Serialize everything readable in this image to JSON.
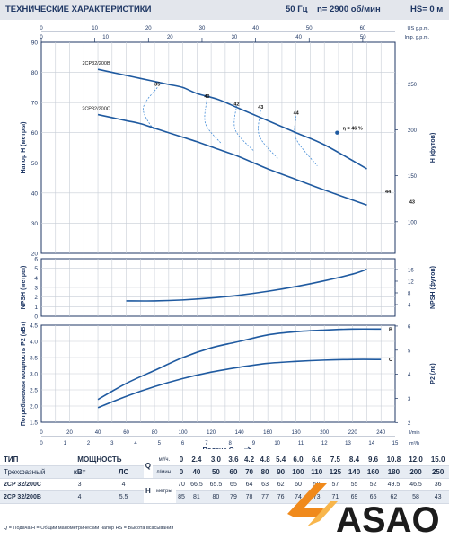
{
  "header": {
    "title": "ТЕХНИЧЕСКИЕ ХАРАКТЕРИСТИКИ",
    "freq": "50 Гц",
    "speed": "n= 2900 об/мин",
    "hs": "HS= 0 м"
  },
  "colors": {
    "curve": "#1f5aa0",
    "grid": "#c7cdd6",
    "text": "#1f3764",
    "logo_orange": "#f08a1c"
  },
  "chart_data": [
    {
      "type": "line",
      "name": "head",
      "ylabel": "Напор H (метры)",
      "ylabel_right": "H (футов)",
      "top_axis_label_1": "US g.p.m.",
      "top_axis_label_2": "Imp. g.p.m.",
      "x_range": [
        0,
        250
      ],
      "ylim": [
        20,
        90
      ],
      "y_ticks": [
        "20",
        "30",
        "40",
        "50",
        "60",
        "70",
        "80",
        "90"
      ],
      "ft_ticks": [
        "100",
        "150",
        "200",
        "250"
      ],
      "us_ticks": [
        "0",
        "10",
        "20",
        "30",
        "40",
        "50",
        "60"
      ],
      "imp_ticks": [
        "0",
        "10",
        "20",
        "30",
        "40",
        "50"
      ],
      "series": [
        {
          "name": "2CP32/200B",
          "x": [
            40,
            50,
            60,
            70,
            80,
            90,
            100,
            110,
            125,
            140,
            160,
            180,
            200,
            230
          ],
          "y": [
            81,
            80,
            79,
            78,
            77,
            76,
            75,
            73,
            71,
            68,
            64,
            60,
            56,
            48
          ]
        },
        {
          "name": "2CP32/200C",
          "x": [
            40,
            50,
            60,
            70,
            80,
            90,
            100,
            110,
            125,
            140,
            160,
            180,
            200,
            230
          ],
          "y": [
            66,
            65,
            64,
            63,
            61.5,
            60,
            58.5,
            57,
            54.5,
            52,
            48,
            44.5,
            41,
            36
          ]
        }
      ],
      "efficiency_labels": [
        {
          "text": "35",
          "x": 82,
          "y": 75.5
        },
        {
          "text": "40",
          "x": 117,
          "y": 71.5
        },
        {
          "text": "42",
          "x": 138,
          "y": 69
        },
        {
          "text": "43",
          "x": 155,
          "y": 68
        },
        {
          "text": "44",
          "x": 180,
          "y": 66
        },
        {
          "text": "η = 46 %",
          "x": 220,
          "y": 61
        },
        {
          "text": "44",
          "x": 245,
          "y": 40
        },
        {
          "text": "43",
          "x": 262,
          "y": 36.5
        }
      ],
      "efficiency_lines": [
        {
          "x": [
            82,
            72,
            80
          ],
          "y": [
            75,
            68,
            60.5
          ]
        },
        {
          "x": [
            117,
            116,
            127
          ],
          "y": [
            71,
            63,
            56.5
          ]
        },
        {
          "x": [
            138,
            137,
            150
          ],
          "y": [
            69,
            61,
            54
          ]
        },
        {
          "x": [
            155,
            154,
            167
          ],
          "y": [
            67.5,
            59,
            51.5
          ]
        },
        {
          "x": [
            180,
            180,
            195
          ],
          "y": [
            65.5,
            58,
            49
          ]
        }
      ],
      "bep": {
        "x": 209,
        "y": 60
      }
    },
    {
      "type": "line",
      "name": "npsh",
      "ylabel": "NPSH (метры)",
      "ylabel_right": "NPSH (футов)",
      "x_range": [
        0,
        250
      ],
      "ylim": [
        0,
        6
      ],
      "y_ticks": [
        "0",
        "1",
        "2",
        "3",
        "4",
        "5",
        "6"
      ],
      "ft_ticks": [
        "4",
        "8",
        "12",
        "16"
      ],
      "series": [
        {
          "name": "NPSH",
          "x": [
            60,
            80,
            100,
            120,
            140,
            160,
            180,
            200,
            220,
            230
          ],
          "y": [
            1.6,
            1.6,
            1.7,
            1.9,
            2.2,
            2.6,
            3.1,
            3.7,
            4.4,
            4.9
          ]
        }
      ]
    },
    {
      "type": "line",
      "name": "power",
      "ylabel": "Потребляемая мощность P2 (кВт)",
      "ylabel_right": "P2 (лс)",
      "ylim": [
        1.5,
        4.5
      ],
      "y_ticks": [
        "1.5",
        "2.0",
        "2.5",
        "3.0",
        "3.5",
        "4.0",
        "4.5"
      ],
      "hp_ticks": [
        "2",
        "3",
        "4",
        "5",
        "6"
      ],
      "x_ticks_lmin": [
        "0",
        "20",
        "40",
        "60",
        "80",
        "100",
        "120",
        "140",
        "160",
        "180",
        "200",
        "220",
        "240"
      ],
      "x_unit_lmin": "l/min",
      "x_ticks_m3h": [
        "0",
        "1",
        "2",
        "3",
        "4",
        "5",
        "6",
        "7",
        "8",
        "9",
        "10",
        "11",
        "12",
        "13",
        "14",
        "15"
      ],
      "x_unit_m3h": "m³/h",
      "xlabel": "Подача Q",
      "series": [
        {
          "name": "B",
          "x": [
            40,
            60,
            80,
            100,
            120,
            140,
            160,
            180,
            200,
            220,
            240
          ],
          "y": [
            2.2,
            2.7,
            3.1,
            3.5,
            3.8,
            4.0,
            4.2,
            4.3,
            4.35,
            4.38,
            4.38
          ]
        },
        {
          "name": "C",
          "x": [
            40,
            60,
            80,
            100,
            120,
            140,
            160,
            180,
            200,
            220,
            240
          ],
          "y": [
            1.95,
            2.3,
            2.6,
            2.85,
            3.05,
            3.2,
            3.32,
            3.38,
            3.42,
            3.44,
            3.44
          ]
        }
      ]
    }
  ],
  "spec": {
    "h_type": "ТИП",
    "h_power": "МОЩНОСТЬ",
    "h_q": "Q",
    "q_m3h_unit": "м³/ч.",
    "q_lmin_unit": "л/мин.",
    "q_m3h": [
      "0",
      "2.4",
      "3.0",
      "3.6",
      "4.2",
      "4.8",
      "5.4",
      "6.0",
      "6.6",
      "7.5",
      "8.4",
      "9.6",
      "10.8",
      "12.0",
      "15.0"
    ],
    "q_lmin": [
      "0",
      "40",
      "50",
      "60",
      "70",
      "80",
      "90",
      "100",
      "110",
      "125",
      "140",
      "160",
      "180",
      "200",
      "250"
    ],
    "sub_type": "Трехфазный",
    "sub_kw": "кВт",
    "sub_hp": "ЛС",
    "h_label": "H",
    "h_unit": "метры",
    "rows": [
      {
        "model": "2CP 32/200C",
        "kw": "3",
        "hp": "4",
        "values": [
          "70",
          "66.5",
          "65.5",
          "65",
          "64",
          "63",
          "62",
          "60",
          "59",
          "57",
          "55",
          "52",
          "49.5",
          "46.5",
          "36"
        ]
      },
      {
        "model": "2CP 32/200B",
        "kw": "4",
        "hp": "5.5",
        "values": [
          "85",
          "81",
          "80",
          "79",
          "78",
          "77",
          "76",
          "74",
          "73",
          "71",
          "69",
          "65",
          "62",
          "58",
          "43"
        ]
      }
    ]
  },
  "footer": "Q = Подача   H = Общий манометрический напор   HS = Высота всасывания",
  "logo": "ASAO"
}
